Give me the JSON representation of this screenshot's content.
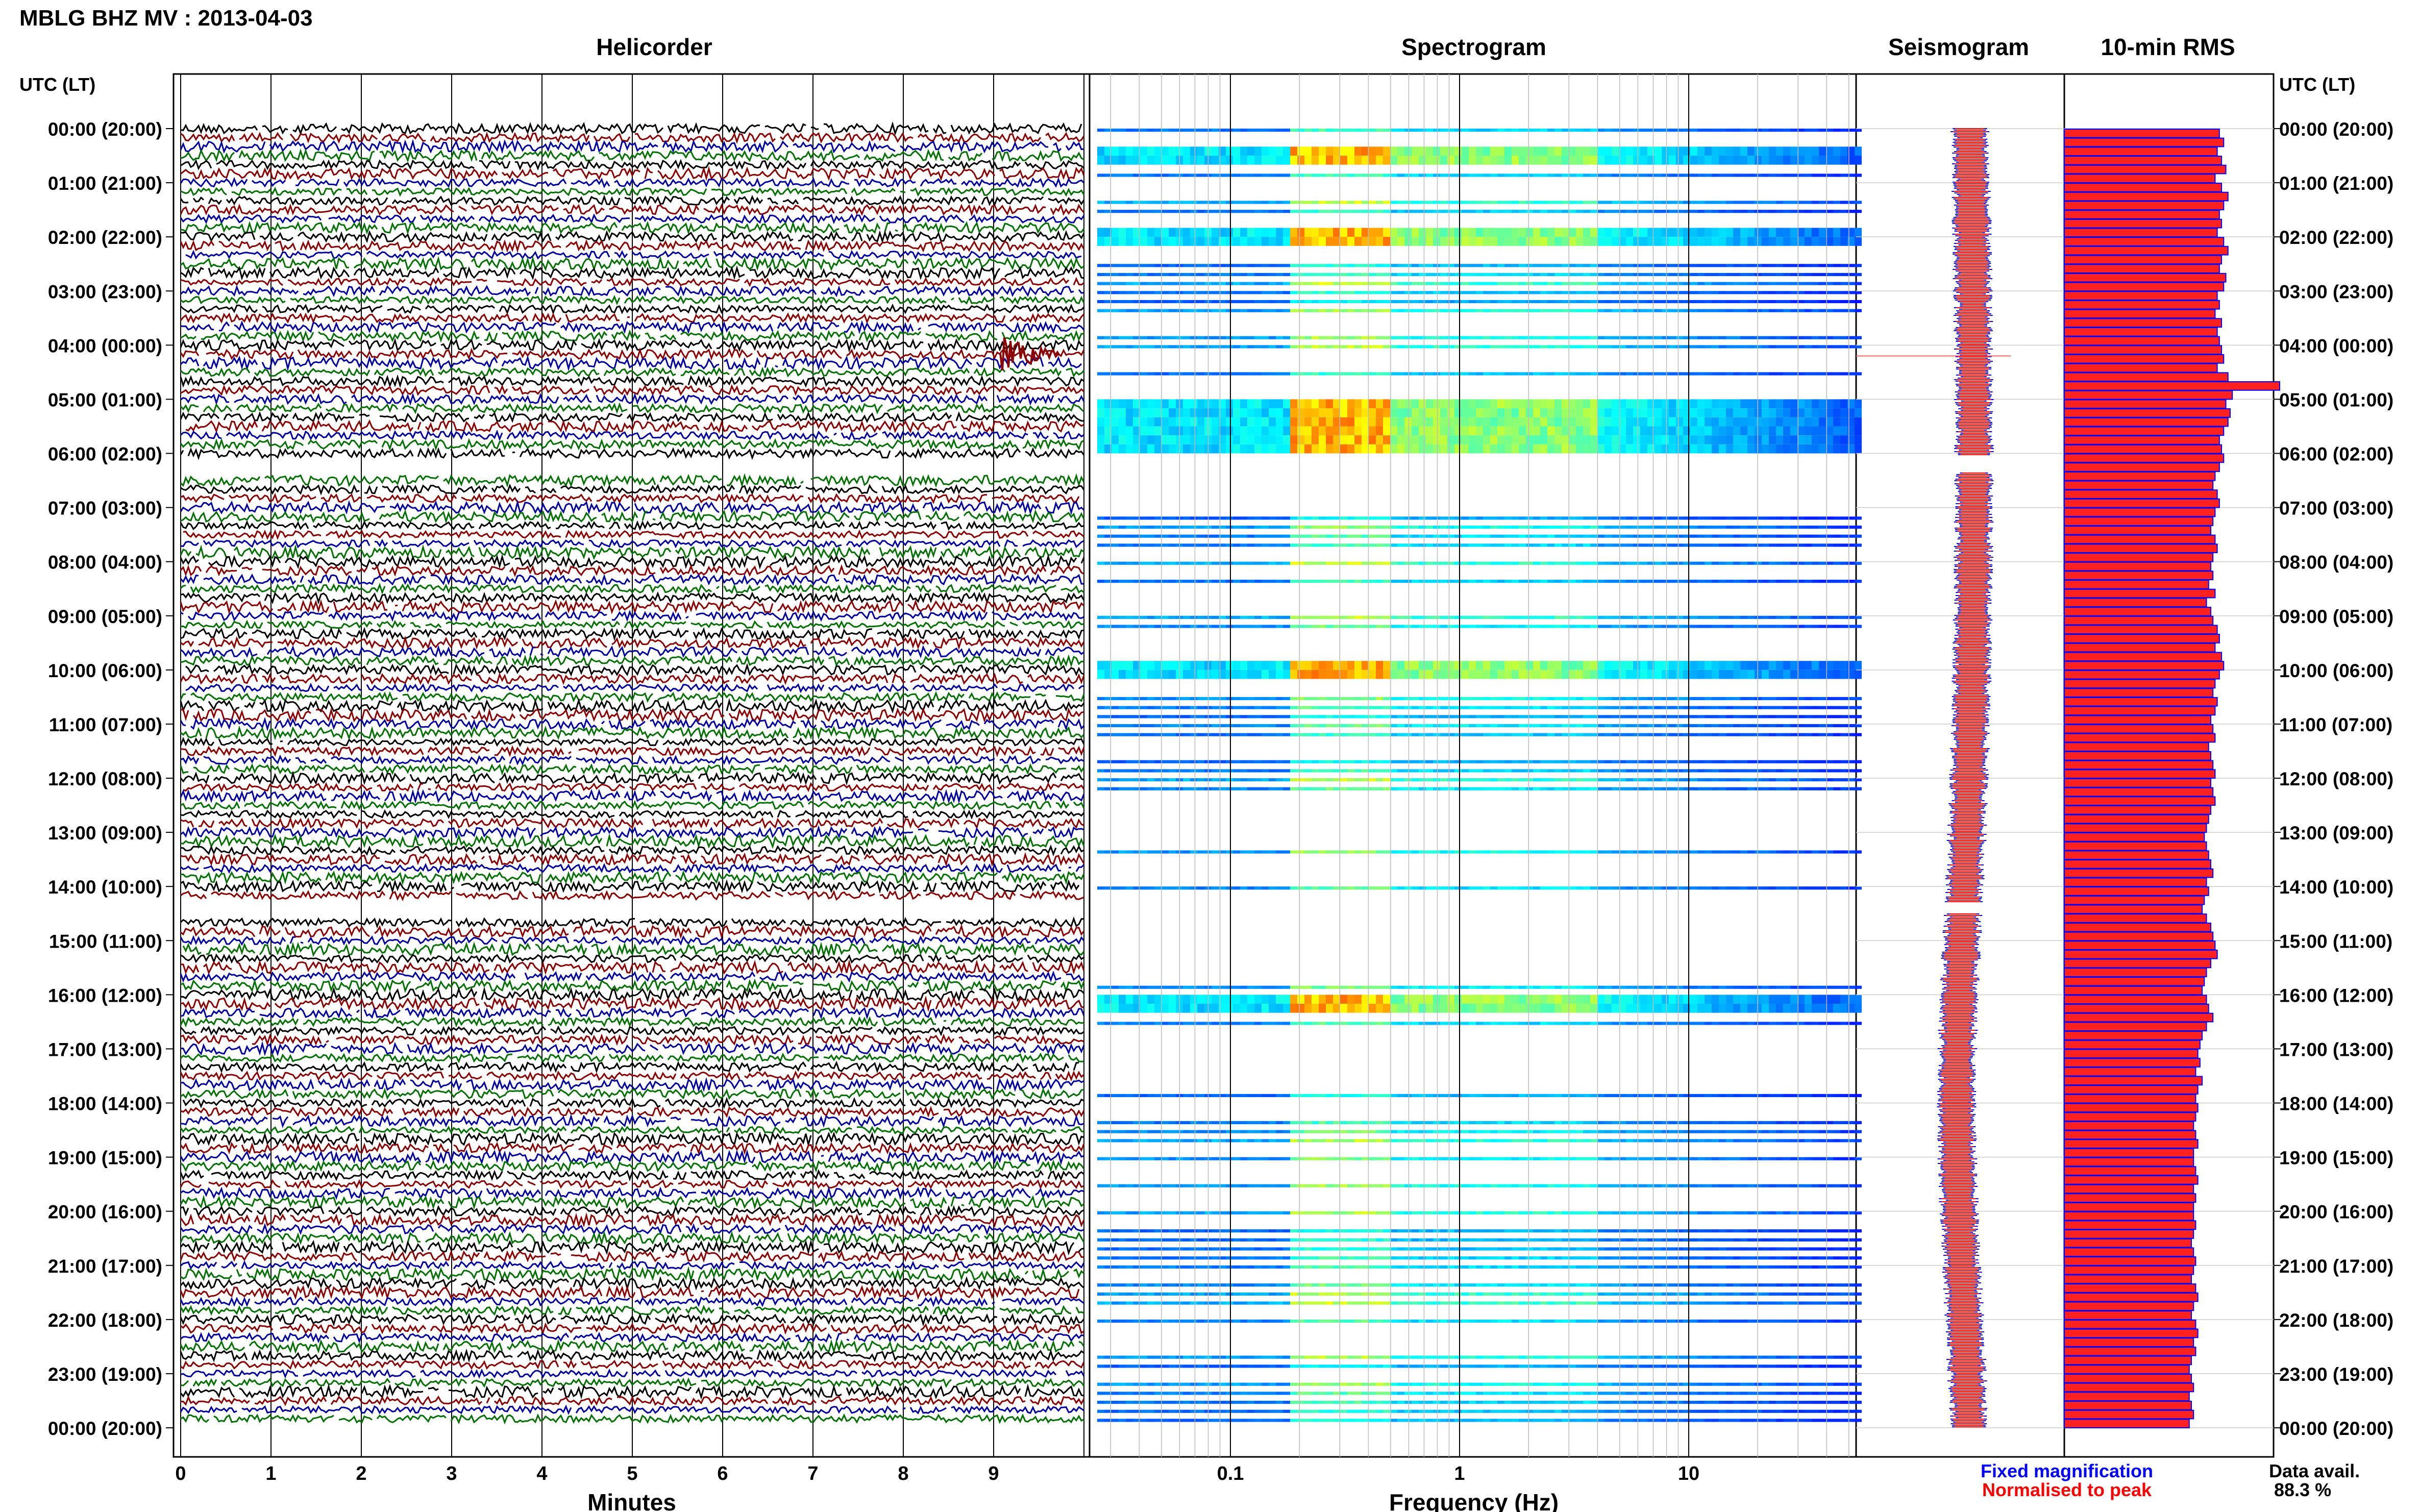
{
  "header": {
    "title": "MBLG BHZ MV : 2013-04-03",
    "utc_label_left": "UTC (LT)",
    "utc_label_right": "UTC (LT)"
  },
  "panels": {
    "helicorder": "Helicorder",
    "spectrogram": "Spectrogram",
    "seismogram": "Seismogram",
    "rms": "10-min RMS"
  },
  "time_labels": [
    "00:00 (20:00)",
    "01:00 (21:00)",
    "02:00 (22:00)",
    "03:00 (23:00)",
    "04:00 (00:00)",
    "05:00 (01:00)",
    "06:00 (02:00)",
    "07:00 (03:00)",
    "08:00 (04:00)",
    "09:00 (05:00)",
    "10:00 (06:00)",
    "11:00 (07:00)",
    "12:00 (08:00)",
    "13:00 (09:00)",
    "14:00 (10:00)",
    "15:00 (11:00)",
    "16:00 (12:00)",
    "17:00 (13:00)",
    "18:00 (14:00)",
    "19:00 (15:00)",
    "20:00 (16:00)",
    "21:00 (17:00)",
    "22:00 (18:00)",
    "23:00 (19:00)",
    "00:00 (20:00)"
  ],
  "axes": {
    "minutes_label": "Minutes",
    "minutes_ticks": [
      "0",
      "1",
      "2",
      "3",
      "4",
      "5",
      "6",
      "7",
      "8",
      "9"
    ],
    "frequency_label": "Frequency (Hz)",
    "frequency_ticks": [
      "0.1",
      "1",
      "10"
    ]
  },
  "legend": {
    "fixed": "Fixed magnification",
    "normalised": "Normalised to peak",
    "fixed_color": "#0000ff",
    "normalised_color": "#ff0000"
  },
  "data_avail": {
    "label": "Data avail.",
    "value": "88.3 %"
  },
  "colors": {
    "heli_traces": [
      "#000000",
      "#8b0000",
      "#0000a0",
      "#007000"
    ],
    "rms_fill": "#ff2020",
    "rms_edge": "#0000ff"
  },
  "chart_data": {
    "type": "heatmap",
    "x_minutes_range": [
      0,
      10
    ],
    "freq_range_hz": [
      0.03,
      50
    ],
    "freq_scale": "log",
    "hours_range": [
      0,
      24
    ],
    "rms_10min_relative": [
      0.72,
      0.74,
      0.71,
      0.73,
      0.75,
      0.7,
      0.73,
      0.76,
      0.74,
      0.72,
      0.73,
      0.71,
      0.74,
      0.76,
      0.73,
      0.72,
      0.75,
      0.74,
      0.71,
      0.72,
      0.7,
      0.73,
      0.71,
      0.72,
      0.73,
      0.74,
      0.71,
      0.76,
      1.0,
      0.78,
      0.75,
      0.77,
      0.76,
      0.74,
      0.72,
      0.73,
      0.74,
      0.72,
      0.7,
      0.69,
      0.71,
      0.72,
      0.7,
      0.69,
      0.68,
      0.7,
      0.71,
      0.69,
      0.68,
      0.69,
      0.67,
      0.7,
      0.66,
      0.68,
      0.69,
      0.71,
      0.72,
      0.7,
      0.73,
      0.74,
      0.72,
      0.7,
      0.69,
      0.71,
      0.7,
      0.68,
      0.69,
      0.7,
      0.67,
      0.68,
      0.69,
      0.7,
      0.68,
      0.69,
      0.7,
      0.68,
      0.67,
      0.66,
      0.65,
      0.66,
      0.67,
      0.68,
      0.69,
      0.66,
      0.67,
      0.65,
      0.64,
      0.66,
      0.68,
      0.69,
      0.7,
      0.71,
      0.68,
      0.66,
      0.65,
      0.64,
      0.66,
      0.67,
      0.69,
      0.66,
      0.64,
      0.63,
      0.62,
      0.63,
      0.61,
      0.64,
      0.62,
      0.61,
      0.62,
      0.61,
      0.6,
      0.61,
      0.62,
      0.6,
      0.6,
      0.61,
      0.62,
      0.6,
      0.61,
      0.6,
      0.6,
      0.61,
      0.6,
      0.59,
      0.6,
      0.61,
      0.6,
      0.59,
      0.61,
      0.62,
      0.6,
      0.59,
      0.61,
      0.62,
      0.6,
      0.61,
      0.59,
      0.58,
      0.59,
      0.6,
      0.58,
      0.59,
      0.6,
      0.58
    ],
    "event_hour": 4.2,
    "gaps_hours": [
      [
        6.05,
        6.35
      ],
      [
        14.3,
        14.5
      ]
    ]
  }
}
